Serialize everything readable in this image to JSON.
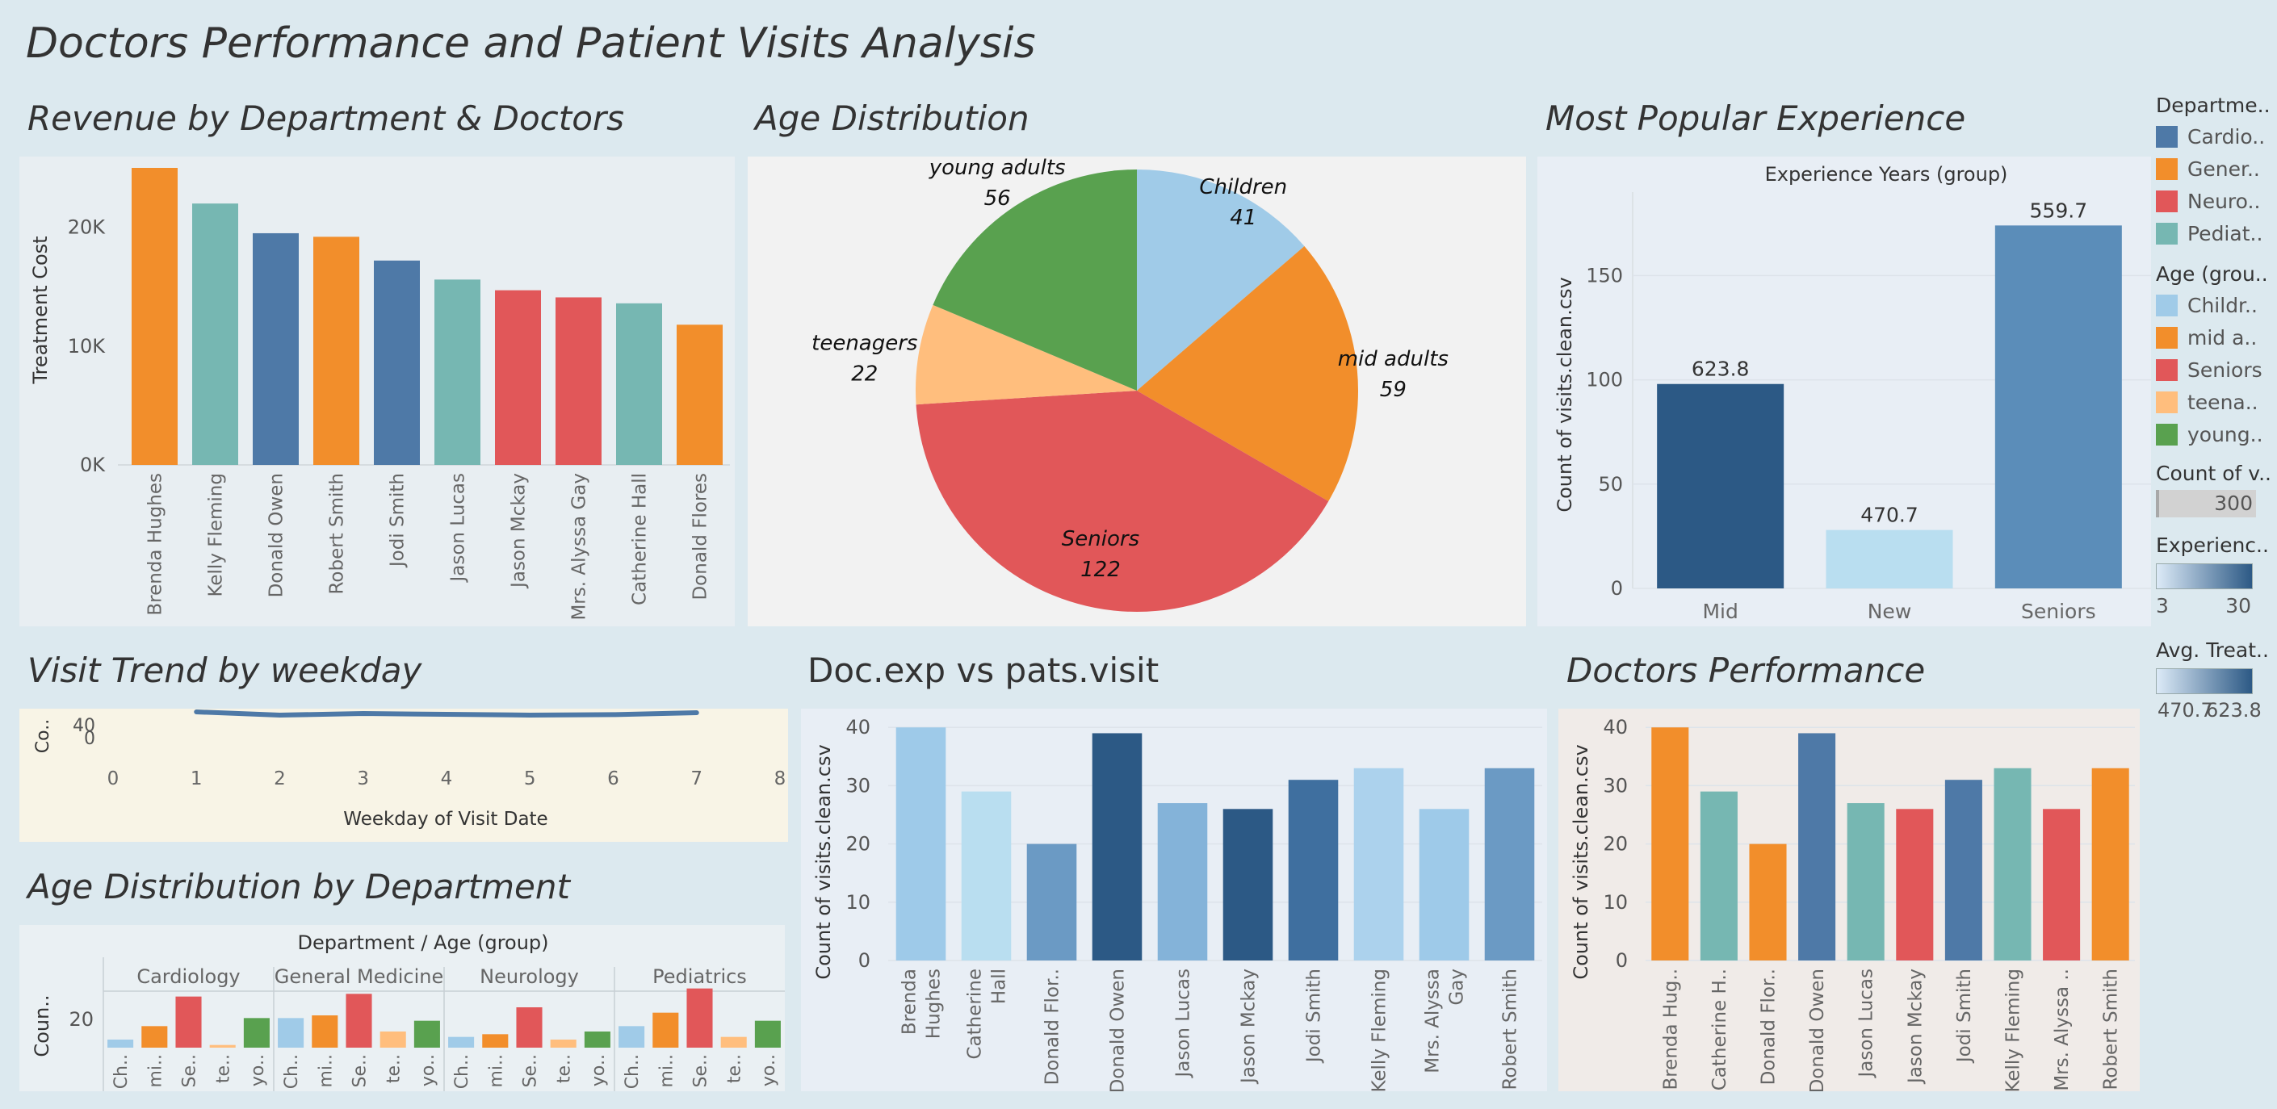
{
  "dashboard": {
    "title": "Doctors Performance and  Patient Visits Analysis"
  },
  "panels": {
    "revenue": "Revenue  by Department & Doctors",
    "age": "Age Distribution",
    "experience": "Most Popular Experience",
    "trend": "Visit Trend  by weekday",
    "docexp": "Doc.exp vs pats.visit",
    "performance": "Doctors Performance",
    "agedept": "Age Distribution by Department"
  },
  "colors": {
    "cardiology": "#4e79a7",
    "general_medicine": "#f28e2b",
    "neurology": "#e15759",
    "pediatrics": "#76b7b2",
    "children": "#a0cbe8",
    "mid_adults": "#f28e2b",
    "seniors": "#e15759",
    "teenagers": "#ffbe7d",
    "young_adults": "#59a14f"
  },
  "chart_data": [
    {
      "id": "revenue",
      "type": "bar",
      "ylabel": "Treatment Cost",
      "ylim": [
        0,
        25000
      ],
      "ytick_values": [
        0,
        10000,
        20000
      ],
      "ytick_labels": [
        "0K",
        "10K",
        "20K"
      ],
      "categories": [
        "Brenda Hughes",
        "Kelly Fleming",
        "Donald Owen",
        "Robert Smith",
        "Jodi Smith",
        "Jason Lucas",
        "Jason Mckay",
        "Mrs. Alyssa Gay",
        "Catherine Hall",
        "Donald Flores"
      ],
      "values": [
        25000,
        22000,
        19500,
        19200,
        17200,
        15600,
        14700,
        14100,
        13600,
        11800
      ],
      "departments": [
        "General Medicine",
        "Pediatrics",
        "Cardiology",
        "General Medicine",
        "Cardiology",
        "Pediatrics",
        "Neurology",
        "Neurology",
        "Pediatrics",
        "General Medicine"
      ]
    },
    {
      "id": "age_distribution",
      "type": "pie",
      "slices": [
        {
          "label": "Children",
          "value": 41,
          "value_label": "41"
        },
        {
          "label": "mid adults",
          "value": 59,
          "value_label": "59"
        },
        {
          "label": "Seniors",
          "value": 122,
          "value_label": "122"
        },
        {
          "label": "teenagers",
          "value": 22,
          "value_label": "22"
        },
        {
          "label": "young adults",
          "value": 56,
          "value_label": "56"
        }
      ]
    },
    {
      "id": "experience",
      "type": "bar",
      "header": "Experience Years (group)",
      "ylabel": "Count of visits.clean.csv",
      "ylim": [
        0,
        190
      ],
      "ytick_values": [
        0,
        50,
        100,
        150
      ],
      "ytick_labels": [
        "0",
        "50",
        "100",
        "150"
      ],
      "categories": [
        "Mid",
        "New",
        "Seniors"
      ],
      "values": [
        98,
        28,
        174
      ],
      "labels": [
        "623.8",
        "470.7",
        "559.7"
      ],
      "colors": [
        "#2c5985",
        "#b9def0",
        "#5b8db9"
      ]
    },
    {
      "id": "weekday_trend",
      "type": "line",
      "xlabel": "Weekday of Visit Date",
      "ylabel": "Co..",
      "xlim": [
        0,
        8
      ],
      "xtick_values": [
        0,
        1,
        2,
        3,
        4,
        5,
        6,
        7,
        8
      ],
      "xtick_labels": [
        "0",
        "1",
        "2",
        "3",
        "4",
        "5",
        "6",
        "7",
        "8"
      ],
      "ytick_labels": [
        "40",
        "0"
      ],
      "x": [
        1,
        2,
        3,
        4,
        5,
        6,
        7
      ],
      "y": [
        43,
        41,
        42,
        41.5,
        41,
        41.3,
        42.5
      ]
    },
    {
      "id": "doc_exp_visits",
      "type": "bar",
      "ylabel": "Count of visits.clean.csv",
      "ylim": [
        0,
        41
      ],
      "ytick_values": [
        0,
        10,
        20,
        30,
        40
      ],
      "ytick_labels": [
        "0",
        "10",
        "20",
        "30",
        "40"
      ],
      "categories": [
        "Brenda Hughes",
        "Catherine Hall",
        "Donald Flor..",
        "Donald Owen",
        "Jason Lucas",
        "Jason Mckay",
        "Jodi Smith",
        "Kelly Fleming",
        "Mrs. Alyssa Gay",
        "Robert Smith"
      ],
      "category_lines": [
        [
          "Brenda",
          "Hughes"
        ],
        [
          "Catherine",
          "Hall"
        ],
        [
          "Donald Flor.."
        ],
        [
          "Donald Owen"
        ],
        [
          "Jason Lucas"
        ],
        [
          "Jason Mckay"
        ],
        [
          "Jodi Smith"
        ],
        [
          "Kelly Fleming"
        ],
        [
          "Mrs. Alyssa",
          "Gay"
        ],
        [
          "Robert Smith"
        ]
      ],
      "values": [
        40,
        29,
        20,
        39,
        27,
        26,
        31,
        33,
        26,
        33
      ],
      "colors": [
        "#9ecae9",
        "#b9def0",
        "#6b9ac4",
        "#2c5985",
        "#84b3d9",
        "#2c5985",
        "#3f6f9f",
        "#acd2ed",
        "#9ecae9",
        "#6b9ac4"
      ]
    },
    {
      "id": "doctors_performance",
      "type": "bar",
      "ylabel": "Count of visits.clean.csv",
      "ylim": [
        0,
        41
      ],
      "ytick_values": [
        0,
        10,
        20,
        30,
        40
      ],
      "ytick_labels": [
        "0",
        "10",
        "20",
        "30",
        "40"
      ],
      "categories": [
        "Brenda Hug..",
        "Catherine H..",
        "Donald Flor..",
        "Donald Owen",
        "Jason Lucas",
        "Jason Mckay",
        "Jodi Smith",
        "Kelly Fleming",
        "Mrs. Alyssa ..",
        "Robert Smith"
      ],
      "values": [
        40,
        29,
        20,
        39,
        27,
        26,
        31,
        33,
        26,
        33
      ],
      "departments": [
        "General Medicine",
        "Pediatrics",
        "General Medicine",
        "Cardiology",
        "Pediatrics",
        "Neurology",
        "Cardiology",
        "Pediatrics",
        "Neurology",
        "General Medicine"
      ]
    },
    {
      "id": "age_by_department",
      "type": "bar",
      "header": "Department  /  Age (group)",
      "ylabel": "Coun..",
      "ytick_labels": [
        "20"
      ],
      "ylim": [
        0,
        36
      ],
      "groups": [
        {
          "name": "Cardiology",
          "values": [
            3,
            8,
            19,
            1,
            11
          ]
        },
        {
          "name": "General Medicine",
          "values": [
            11,
            12,
            20,
            6,
            10
          ]
        },
        {
          "name": "Neurology",
          "values": [
            4,
            5,
            15,
            3,
            6
          ]
        },
        {
          "name": "Pediatrics",
          "values": [
            8,
            13,
            22,
            4,
            10
          ]
        }
      ],
      "categories": [
        "Ch..",
        "mi..",
        "Se..",
        "te..",
        "yo.."
      ]
    }
  ],
  "legend": {
    "department": {
      "title": "Departme..",
      "items": [
        "Cardio..",
        "Gener..",
        "Neuro..",
        "Pediat.."
      ]
    },
    "age_group": {
      "title": "Age (grou..",
      "items": [
        "Childr..",
        "mid a..",
        "Seniors",
        "teena..",
        "young.."
      ]
    },
    "count": {
      "title": "Count of v..",
      "value": "300"
    },
    "experience": {
      "title": "Experienc..",
      "min": "3",
      "max": "30"
    },
    "avg_treatment": {
      "title": "Avg. Treat..",
      "min": "470.7",
      "max": "623.8"
    }
  }
}
